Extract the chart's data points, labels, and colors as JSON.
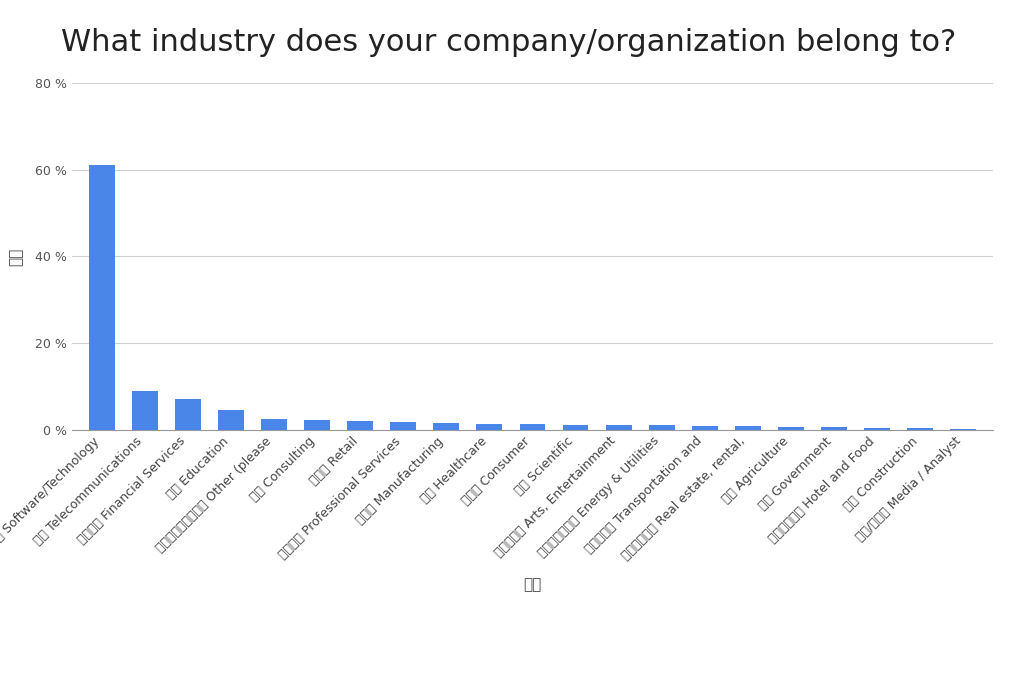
{
  "title": "What industry does your company/organization belong to?",
  "xlabel": "选项",
  "ylabel": "比例",
  "bar_color": "#4A86E8",
  "background_color": "#ffffff",
  "grid_color": "#d0d0d0",
  "categories": [
    "软件技术 Software/Technology",
    "电信 Telecommunications",
    "金融服务 Financial Services",
    "教育 Education",
    "其他（请具体说明） Other (please",
    "咋设 Consulting",
    "零售业 Retail",
    "专业服务 Professional Services",
    "制造业 Manufacturing",
    "医疗 Healthcare",
    "消费者 Consumer",
    "科学 Scientific",
    "艺术、娱乐 Arts, Entertainment",
    "能源和公用事业 Energy & Utilities",
    "运输和仓储 Transportation and",
    "房地产、租赁 Real estate, rental,",
    "农业 Agriculture",
    "政府 Government",
    "酒店餐饮服务 Hotel and Food",
    "建筑 Construction",
    "媒体/分析师 Media / Analyst"
  ],
  "values": [
    61.0,
    9.0,
    7.0,
    4.5,
    2.5,
    2.2,
    2.0,
    1.8,
    1.5,
    1.3,
    1.2,
    1.1,
    1.0,
    1.0,
    0.9,
    0.8,
    0.6,
    0.5,
    0.4,
    0.3,
    0.2
  ],
  "ylim": [
    0,
    80
  ],
  "yticks": [
    0,
    20,
    40,
    60,
    80
  ],
  "title_fontsize": 22,
  "axis_label_fontsize": 11,
  "tick_fontsize": 9
}
